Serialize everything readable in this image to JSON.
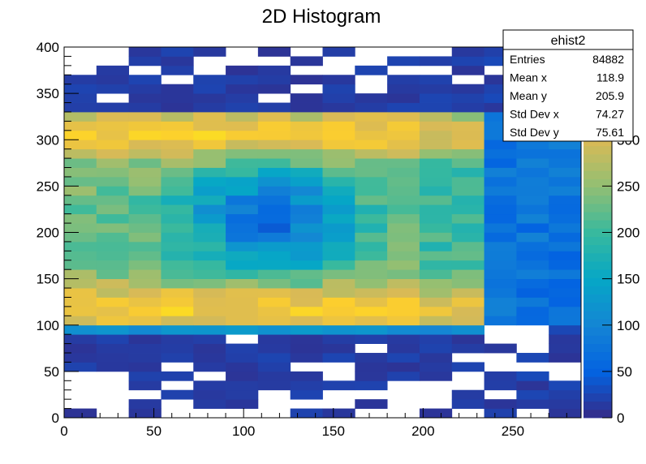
{
  "chart_data": {
    "type": "heatmap",
    "title": "2D Histogram",
    "x_axis": {
      "range": [
        0,
        288
      ],
      "ticks": [
        "0",
        "50",
        "100",
        "150",
        "200",
        "250"
      ],
      "tick_values": [
        0,
        50,
        100,
        150,
        200,
        250
      ],
      "label": ""
    },
    "y_axis": {
      "range": [
        0,
        400
      ],
      "ticks": [
        "0",
        "50",
        "100",
        "150",
        "200",
        "250",
        "300",
        "350",
        "400"
      ],
      "tick_values": [
        0,
        50,
        100,
        150,
        200,
        250,
        300,
        350,
        400
      ],
      "label": ""
    },
    "z_axis": {
      "range": [
        0,
        400
      ],
      "ticks": [
        "0",
        "50",
        "100",
        "150",
        "200",
        "250",
        "300"
      ],
      "tick_values": [
        0,
        50,
        100,
        150,
        200,
        250,
        300
      ],
      "palette": "kBird"
    },
    "bins": {
      "x_count": 16,
      "y_count": 40,
      "x_width": 18,
      "y_width": 10
    },
    "colors": [
      "#352a87",
      "#0363e1",
      "#1485d4",
      "#06a7c6",
      "#38b99e",
      "#92bf73",
      "#d9ba56",
      "#fcce2e",
      "#f9fb0e"
    ],
    "grid": false,
    "stats_box": {
      "name": "ehist2",
      "rows": [
        {
          "label": "Entries",
          "value": "84882"
        },
        {
          "label": "Mean x",
          "value": "118.9"
        },
        {
          "label": "Mean y",
          "value": "205.9"
        },
        {
          "label": "Std Dev x",
          "value": "74.27"
        },
        {
          "label": "Std Dev y",
          "value": "75.61"
        }
      ]
    }
  }
}
